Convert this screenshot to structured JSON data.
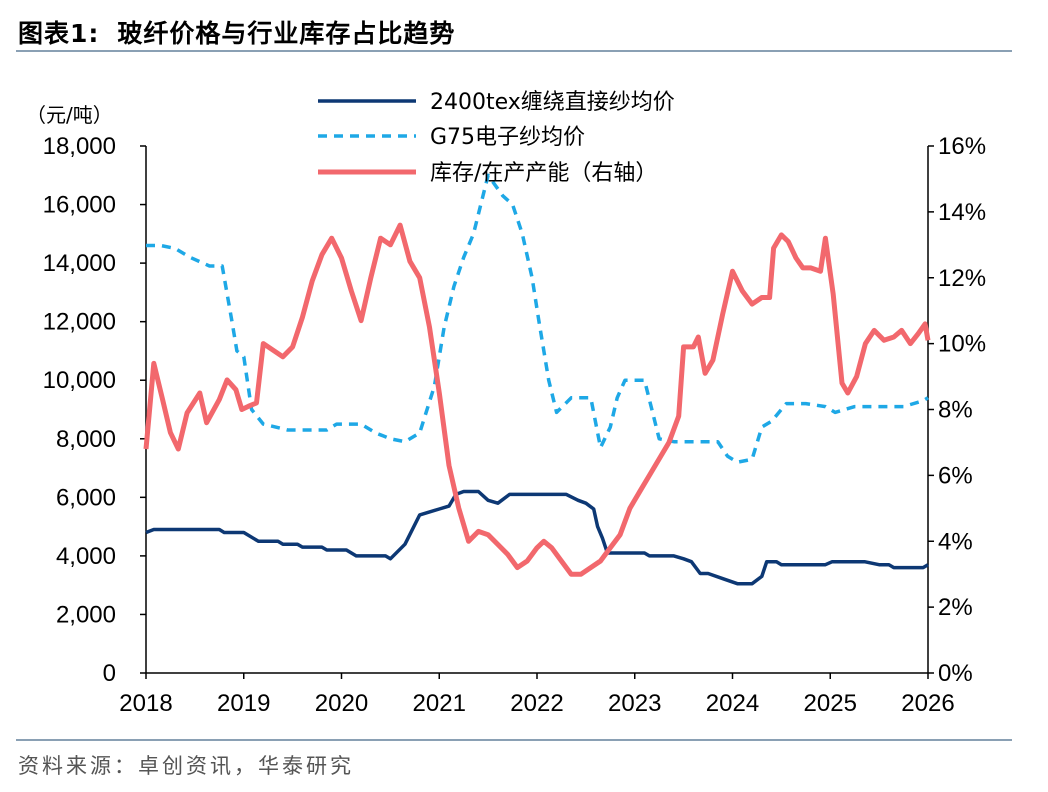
{
  "figure": {
    "label": "图表1:",
    "title": "玻纤价格与行业库存占比趋势",
    "source": "资料来源：卓创资讯，华泰研究"
  },
  "colors": {
    "direct_roving": "#0d3874",
    "g75_yarn": "#1ea8e6",
    "inventory": "#f2686d",
    "axis": "#000000",
    "rule": "#8aa0b4"
  },
  "chart_data": {
    "type": "line",
    "title": "玻纤价格与行业库存占比趋势",
    "y_left": {
      "unit_label": "（元/吨）",
      "lim": [
        0,
        18000
      ],
      "ticks": [
        "0",
        "2,000",
        "4,000",
        "6,000",
        "8,000",
        "10,000",
        "12,000",
        "14,000",
        "16,000",
        "18,000"
      ]
    },
    "y_right": {
      "lim": [
        0,
        16
      ],
      "ticks": [
        "0%",
        "2%",
        "4%",
        "6%",
        "8%",
        "10%",
        "12%",
        "14%",
        "16%"
      ]
    },
    "x": {
      "lim": [
        2018,
        2026
      ],
      "ticks": [
        "2018",
        "2019",
        "2020",
        "2021",
        "2022",
        "2023",
        "2024",
        "2025",
        "2026"
      ]
    },
    "legend": [
      "2400tex缠绕直接纱均价",
      "G75电子纱均价",
      "库存/在产产能（右轴）"
    ],
    "series": [
      {
        "name": "2400tex缠绕直接纱均价",
        "axis": "left",
        "style": "solid",
        "points": [
          [
            2018.0,
            4800
          ],
          [
            2018.08,
            4900
          ],
          [
            2018.5,
            4900
          ],
          [
            2018.75,
            4900
          ],
          [
            2018.8,
            4800
          ],
          [
            2019.0,
            4800
          ],
          [
            2019.15,
            4500
          ],
          [
            2019.35,
            4500
          ],
          [
            2019.4,
            4400
          ],
          [
            2019.55,
            4400
          ],
          [
            2019.6,
            4300
          ],
          [
            2019.8,
            4300
          ],
          [
            2019.85,
            4200
          ],
          [
            2020.05,
            4200
          ],
          [
            2020.15,
            4000
          ],
          [
            2020.45,
            4000
          ],
          [
            2020.5,
            3900
          ],
          [
            2020.65,
            4400
          ],
          [
            2020.8,
            5400
          ],
          [
            2021.0,
            5600
          ],
          [
            2021.1,
            5700
          ],
          [
            2021.17,
            6100
          ],
          [
            2021.25,
            6200
          ],
          [
            2021.4,
            6200
          ],
          [
            2021.5,
            5900
          ],
          [
            2021.6,
            5800
          ],
          [
            2021.72,
            6100
          ],
          [
            2022.15,
            6100
          ],
          [
            2022.3,
            6100
          ],
          [
            2022.42,
            5900
          ],
          [
            2022.5,
            5800
          ],
          [
            2022.58,
            5600
          ],
          [
            2022.62,
            5000
          ],
          [
            2022.67,
            4600
          ],
          [
            2022.72,
            4100
          ],
          [
            2022.95,
            4100
          ],
          [
            2023.1,
            4100
          ],
          [
            2023.15,
            4000
          ],
          [
            2023.4,
            4000
          ],
          [
            2023.5,
            3900
          ],
          [
            2023.58,
            3800
          ],
          [
            2023.67,
            3400
          ],
          [
            2023.75,
            3400
          ],
          [
            2023.92,
            3200
          ],
          [
            2024.05,
            3050
          ],
          [
            2024.2,
            3050
          ],
          [
            2024.3,
            3300
          ],
          [
            2024.35,
            3800
          ],
          [
            2024.45,
            3800
          ],
          [
            2024.5,
            3700
          ],
          [
            2024.95,
            3700
          ],
          [
            2025.02,
            3800
          ],
          [
            2025.35,
            3800
          ],
          [
            2025.5,
            3700
          ],
          [
            2025.6,
            3700
          ],
          [
            2025.65,
            3600
          ],
          [
            2025.95,
            3600
          ],
          [
            2026.0,
            3700
          ]
        ]
      },
      {
        "name": "G75电子纱均价",
        "axis": "left",
        "style": "dashed",
        "points": [
          [
            2018.0,
            14600
          ],
          [
            2018.15,
            14600
          ],
          [
            2018.3,
            14500
          ],
          [
            2018.45,
            14200
          ],
          [
            2018.65,
            13900
          ],
          [
            2018.78,
            13900
          ],
          [
            2018.88,
            12000
          ],
          [
            2018.93,
            11000
          ],
          [
            2019.0,
            10800
          ],
          [
            2019.08,
            9000
          ],
          [
            2019.2,
            8500
          ],
          [
            2019.45,
            8300
          ],
          [
            2019.7,
            8300
          ],
          [
            2019.85,
            8300
          ],
          [
            2019.95,
            8500
          ],
          [
            2020.2,
            8500
          ],
          [
            2020.35,
            8200
          ],
          [
            2020.5,
            8000
          ],
          [
            2020.65,
            7900
          ],
          [
            2020.8,
            8200
          ],
          [
            2020.95,
            9800
          ],
          [
            2021.05,
            11800
          ],
          [
            2021.15,
            13200
          ],
          [
            2021.25,
            14200
          ],
          [
            2021.35,
            15000
          ],
          [
            2021.5,
            17000
          ],
          [
            2021.65,
            16300
          ],
          [
            2021.75,
            16000
          ],
          [
            2021.85,
            15000
          ],
          [
            2021.95,
            13500
          ],
          [
            2022.02,
            12000
          ],
          [
            2022.12,
            10000
          ],
          [
            2022.2,
            8900
          ],
          [
            2022.35,
            9400
          ],
          [
            2022.45,
            9400
          ],
          [
            2022.55,
            9400
          ],
          [
            2022.65,
            7700
          ],
          [
            2022.75,
            8400
          ],
          [
            2022.82,
            9400
          ],
          [
            2022.9,
            10000
          ],
          [
            2023.1,
            10000
          ],
          [
            2023.25,
            8000
          ],
          [
            2023.4,
            7900
          ],
          [
            2023.6,
            7900
          ],
          [
            2023.85,
            7900
          ],
          [
            2023.95,
            7400
          ],
          [
            2024.05,
            7200
          ],
          [
            2024.2,
            7300
          ],
          [
            2024.3,
            8400
          ],
          [
            2024.4,
            8600
          ],
          [
            2024.55,
            9200
          ],
          [
            2024.75,
            9200
          ],
          [
            2024.95,
            9100
          ],
          [
            2025.05,
            8900
          ],
          [
            2025.25,
            9100
          ],
          [
            2025.45,
            9100
          ],
          [
            2025.75,
            9100
          ],
          [
            2025.95,
            9300
          ],
          [
            2026.0,
            9400
          ]
        ]
      },
      {
        "name": "库存/在产产能（右轴）",
        "axis": "right",
        "style": "solid",
        "points": [
          [
            2018.0,
            6.8
          ],
          [
            2018.08,
            9.4
          ],
          [
            2018.17,
            8.3
          ],
          [
            2018.25,
            7.3
          ],
          [
            2018.33,
            6.8
          ],
          [
            2018.42,
            7.9
          ],
          [
            2018.55,
            8.5
          ],
          [
            2018.62,
            7.6
          ],
          [
            2018.75,
            8.3
          ],
          [
            2018.83,
            8.9
          ],
          [
            2018.92,
            8.6
          ],
          [
            2018.98,
            8.0
          ],
          [
            2019.05,
            8.1
          ],
          [
            2019.13,
            8.2
          ],
          [
            2019.2,
            10.0
          ],
          [
            2019.3,
            9.8
          ],
          [
            2019.4,
            9.6
          ],
          [
            2019.5,
            9.9
          ],
          [
            2019.6,
            10.8
          ],
          [
            2019.7,
            11.9
          ],
          [
            2019.8,
            12.7
          ],
          [
            2019.9,
            13.2
          ],
          [
            2020.0,
            12.6
          ],
          [
            2020.1,
            11.6
          ],
          [
            2020.2,
            10.7
          ],
          [
            2020.3,
            12.0
          ],
          [
            2020.4,
            13.2
          ],
          [
            2020.5,
            13.0
          ],
          [
            2020.6,
            13.6
          ],
          [
            2020.7,
            12.5
          ],
          [
            2020.8,
            12.0
          ],
          [
            2020.9,
            10.5
          ],
          [
            2021.0,
            8.5
          ],
          [
            2021.1,
            6.3
          ],
          [
            2021.2,
            5.0
          ],
          [
            2021.3,
            4.0
          ],
          [
            2021.4,
            4.3
          ],
          [
            2021.5,
            4.2
          ],
          [
            2021.6,
            3.9
          ],
          [
            2021.7,
            3.6
          ],
          [
            2021.8,
            3.2
          ],
          [
            2021.9,
            3.4
          ],
          [
            2022.0,
            3.8
          ],
          [
            2022.07,
            4.0
          ],
          [
            2022.15,
            3.8
          ],
          [
            2022.25,
            3.4
          ],
          [
            2022.35,
            3.0
          ],
          [
            2022.45,
            3.0
          ],
          [
            2022.55,
            3.2
          ],
          [
            2022.65,
            3.4
          ],
          [
            2022.75,
            3.8
          ],
          [
            2022.85,
            4.2
          ],
          [
            2022.95,
            5.0
          ],
          [
            2023.05,
            5.5
          ],
          [
            2023.15,
            6.0
          ],
          [
            2023.25,
            6.5
          ],
          [
            2023.35,
            7.0
          ],
          [
            2023.45,
            7.8
          ],
          [
            2023.5,
            9.9
          ],
          [
            2023.6,
            9.9
          ],
          [
            2023.65,
            10.2
          ],
          [
            2023.72,
            9.1
          ],
          [
            2023.8,
            9.5
          ],
          [
            2023.9,
            10.9
          ],
          [
            2024.0,
            12.2
          ],
          [
            2024.1,
            11.6
          ],
          [
            2024.2,
            11.2
          ],
          [
            2024.3,
            11.4
          ],
          [
            2024.38,
            11.4
          ],
          [
            2024.42,
            12.9
          ],
          [
            2024.5,
            13.3
          ],
          [
            2024.57,
            13.1
          ],
          [
            2024.65,
            12.6
          ],
          [
            2024.72,
            12.3
          ],
          [
            2024.8,
            12.3
          ],
          [
            2024.9,
            12.2
          ],
          [
            2024.95,
            13.2
          ],
          [
            2025.03,
            11.5
          ],
          [
            2025.12,
            8.8
          ],
          [
            2025.18,
            8.5
          ],
          [
            2025.27,
            9.0
          ],
          [
            2025.36,
            10.0
          ],
          [
            2025.45,
            10.4
          ],
          [
            2025.55,
            10.1
          ],
          [
            2025.65,
            10.2
          ],
          [
            2025.73,
            10.4
          ],
          [
            2025.82,
            10.0
          ],
          [
            2025.9,
            10.3
          ],
          [
            2025.97,
            10.6
          ],
          [
            2026.0,
            10.1
          ]
        ]
      }
    ]
  }
}
